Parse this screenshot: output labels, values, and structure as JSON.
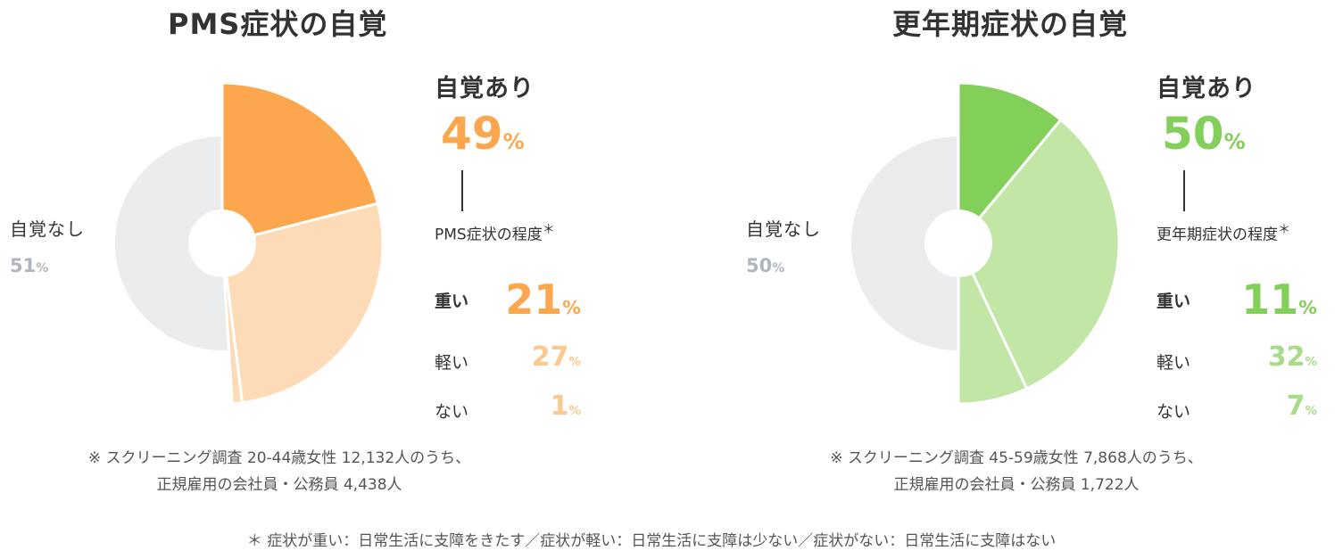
{
  "chart_data": [
    {
      "type": "pie",
      "title": "PMS症状の自覚",
      "slices": [
        {
          "label": "重い",
          "value": 21
        },
        {
          "label": "軽い",
          "value": 27
        },
        {
          "label": "ない",
          "value": 1
        },
        {
          "label": "自覚なし",
          "value": 51
        }
      ],
      "aware_label": "自覚あり",
      "aware_value": "49",
      "unaware_label": "自覚なし",
      "unaware_value": "51",
      "degree_label": "PMS症状の程度",
      "degree_mark": "＊",
      "levels": [
        {
          "name": "重い",
          "value": "21"
        },
        {
          "name": "軽い",
          "value": "27"
        },
        {
          "name": "ない",
          "value": "1"
        }
      ],
      "note_line1": "※ スクリーニング調査 20-44歳女性 12,132人のうち、",
      "note_line2": "正規雇用の会社員・公務員 4,438人",
      "colors": {
        "heavy": "#fca74e",
        "light": "#fddbb6",
        "none": "#fddbb6",
        "unaware": "#ebecee",
        "light_text": "#fbc890"
      }
    },
    {
      "type": "pie",
      "title": "更年期症状の自覚",
      "slices": [
        {
          "label": "重い",
          "value": 11
        },
        {
          "label": "軽い",
          "value": 32
        },
        {
          "label": "ない",
          "value": 7
        },
        {
          "label": "自覚なし",
          "value": 50
        }
      ],
      "aware_label": "自覚あり",
      "aware_value": "50",
      "unaware_label": "自覚なし",
      "unaware_value": "50",
      "degree_label": "更年期症状の程度",
      "degree_mark": "＊",
      "levels": [
        {
          "name": "重い",
          "value": "11"
        },
        {
          "name": "軽い",
          "value": "32"
        },
        {
          "name": "ない",
          "value": "7"
        }
      ],
      "note_line1": "※ スクリーニング調査 45-59歳女性 7,868人のうち、",
      "note_line2": "正規雇用の会社員・公務員 1,722人",
      "colors": {
        "heavy": "#82cf59",
        "light": "#c2e6a6",
        "none": "#c2e6a6",
        "unaware": "#ebecee",
        "light_text": "#a9dc89"
      }
    }
  ],
  "percent_sign": "%",
  "footnote": "＊ 症状が重い：日常生活に支障をきたす／症状が軽い：日常生活に支障は少ない／症状がない：日常生活に支障はない"
}
